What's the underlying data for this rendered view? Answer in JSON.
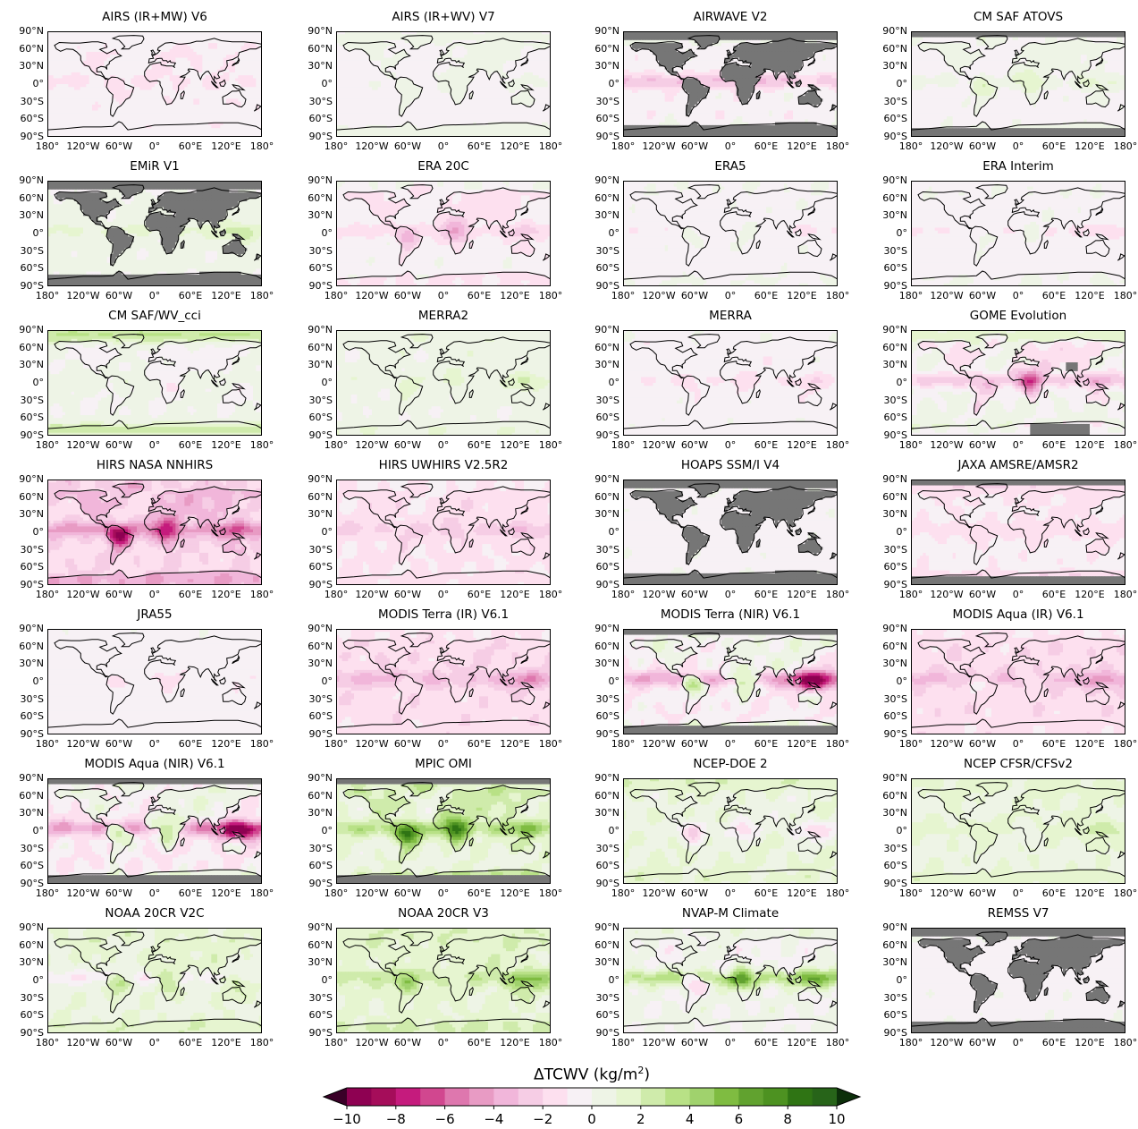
{
  "colors": {
    "land_mask": "#767676",
    "coastline": "#000000",
    "scale": [
      "#8e0152",
      "#a50d5a",
      "#c51b7d",
      "#d1478f",
      "#de77ae",
      "#e89bc4",
      "#f1b6da",
      "#f6cde5",
      "#fde0ef",
      "#f7f1f5",
      "#eef4e6",
      "#e6f5d0",
      "#cfebab",
      "#b8e186",
      "#a0d26d",
      "#7fbc41",
      "#61a22f",
      "#4d9221",
      "#2f7414",
      "#276419"
    ]
  },
  "chart_data": {
    "type": "heatmap",
    "colorbar": {
      "label": "ΔTCWV (kg/m²)",
      "label_prefix": "ΔTCWV (kg/m",
      "label_sup": "2",
      "label_suffix": ")",
      "range": [
        -10,
        10
      ],
      "step": 1,
      "ticks": [
        "−10",
        "−8",
        "−6",
        "−4",
        "−2",
        "0",
        "2",
        "4",
        "6",
        "8",
        "10"
      ],
      "extend": "both"
    },
    "axes": {
      "x_ticks": [
        "180°",
        "120°W",
        "60°W",
        "0°",
        "60°E",
        "120°E",
        "180°"
      ],
      "y_ticks": [
        "90°N",
        "60°N",
        "30°N",
        "0°",
        "30°S",
        "60°S",
        "90°S"
      ],
      "x_range": [
        -180,
        180
      ],
      "y_range": [
        -90,
        90
      ]
    },
    "panels": [
      {
        "title": "AIRS (IR+MW) V6",
        "field": {
          "base": -0.8,
          "itcz": -0.3,
          "land": -0.2,
          "amazon": 0,
          "africa": 0,
          "wp": 0,
          "polar": 0.3,
          "noise": 0.3
        },
        "mask": "none"
      },
      {
        "title": "AIRS (IR+WV) V7",
        "field": {
          "base": -0.3,
          "itcz": 0.2,
          "land": 0.4,
          "amazon": 0.3,
          "africa": 0.3,
          "wp": 0.2,
          "polar": 0.5,
          "noise": 0.3
        },
        "mask": "none"
      },
      {
        "title": "AIRWAVE V2",
        "field": {
          "base": -0.5,
          "itcz": -2.5,
          "land": 0,
          "amazon": 0,
          "africa": 0,
          "wp": 1.0,
          "polar": 1.2,
          "noise": 0.8
        },
        "mask": "land_polar"
      },
      {
        "title": "CM SAF ATOVS",
        "field": {
          "base": -0.4,
          "itcz": 0.6,
          "land": 0.8,
          "amazon": 1.2,
          "africa": 1.5,
          "wp": 1.2,
          "polar": 0.2,
          "noise": 0.6
        },
        "mask": "polar"
      },
      {
        "title": "EMiR V1",
        "field": {
          "base": 0.3,
          "itcz": 0.8,
          "land": 0,
          "amazon": 0,
          "africa": 0,
          "wp": 1.8,
          "polar": -0.6,
          "noise": 0.6
        },
        "mask": "land_polar"
      },
      {
        "title": "ERA 20C",
        "field": {
          "base": -0.4,
          "itcz": -1.0,
          "land": -1.0,
          "amazon": -2.0,
          "africa": -2.5,
          "wp": -1.0,
          "polar": 0.3,
          "noise": 0.6
        },
        "mask": "none"
      },
      {
        "title": "ERA5",
        "field": {
          "base": -0.3,
          "itcz": -0.5,
          "land": 0.1,
          "amazon": 0.5,
          "africa": 0.4,
          "wp": -0.5,
          "polar": 0.2,
          "noise": 0.4
        },
        "mask": "none"
      },
      {
        "title": "ERA Interim",
        "field": {
          "base": -0.4,
          "itcz": -0.6,
          "land": 0.2,
          "amazon": 0.6,
          "africa": 0.4,
          "wp": -0.6,
          "polar": 0.2,
          "noise": 0.4
        },
        "mask": "none"
      },
      {
        "title": "CM SAF/WV_cci",
        "field": {
          "base": 0.1,
          "itcz": 0.6,
          "land": -0.5,
          "amazon": 0.8,
          "africa": -0.8,
          "wp": -0.6,
          "polar": 3.0,
          "noise": 0.5
        },
        "mask": "none"
      },
      {
        "title": "MERRA2",
        "field": {
          "base": 0.2,
          "itcz": 0.5,
          "land": 0.4,
          "amazon": 0.8,
          "africa": 0.6,
          "wp": 1.5,
          "polar": 0.3,
          "noise": 0.5
        },
        "mask": "none"
      },
      {
        "title": "MERRA",
        "field": {
          "base": -0.4,
          "itcz": -0.6,
          "land": -0.3,
          "amazon": -0.6,
          "africa": -0.6,
          "wp": -0.8,
          "polar": 0.2,
          "noise": 0.5
        },
        "mask": "none"
      },
      {
        "title": "GOME Evolution",
        "field": {
          "base": 0.1,
          "itcz": -2.5,
          "land": -1.5,
          "amazon": -1.5,
          "africa": -4.5,
          "wp": -1.2,
          "polar": 1.5,
          "noise": 0.9
        },
        "mask": "patches"
      },
      {
        "title": "HIRS NASA NNHIRS",
        "field": {
          "base": -1.8,
          "itcz": -2.5,
          "land": -1.5,
          "amazon": -6.0,
          "africa": -4.0,
          "wp": -2.0,
          "polar": -0.5,
          "noise": 1.0
        },
        "mask": "none"
      },
      {
        "title": "HIRS UWHIRS V2.5R2",
        "field": {
          "base": -1.2,
          "itcz": -1.0,
          "land": -0.4,
          "amazon": -0.3,
          "africa": -0.8,
          "wp": -1.0,
          "polar": 0.3,
          "noise": 0.8
        },
        "mask": "none"
      },
      {
        "title": "HOAPS SSM/I V4",
        "field": {
          "base": -0.2,
          "itcz": -0.4,
          "land": 0,
          "amazon": 0,
          "africa": 0,
          "wp": 0.3,
          "polar": 0.2,
          "noise": 0.3
        },
        "mask": "land_polar"
      },
      {
        "title": "JAXA AMSRE/AMSR2",
        "field": {
          "base": -0.8,
          "itcz": -0.6,
          "land": -0.3,
          "amazon": -0.4,
          "africa": -0.4,
          "wp": -0.4,
          "polar": -1.2,
          "noise": 0.4
        },
        "mask": "polar"
      },
      {
        "title": "JRA55",
        "field": {
          "base": -0.3,
          "itcz": -0.4,
          "land": -0.4,
          "amazon": -0.5,
          "africa": -0.4,
          "wp": -0.2,
          "polar": 0.1,
          "noise": 0.3
        },
        "mask": "none"
      },
      {
        "title": "MODIS Terra (IR) V6.1",
        "field": {
          "base": -1.6,
          "itcz": -1.8,
          "land": -0.3,
          "amazon": 0.8,
          "africa": 0.2,
          "wp": -1.5,
          "polar": 0.5,
          "noise": 0.8
        },
        "mask": "none"
      },
      {
        "title": "MODIS Terra (NIR) V6.1",
        "field": {
          "base": -0.8,
          "itcz": -3.0,
          "land": 1.2,
          "amazon": 2.5,
          "africa": 3.0,
          "wp": -7.0,
          "polar": 0.6,
          "noise": 1.2
        },
        "mask": "polar"
      },
      {
        "title": "MODIS Aqua (IR) V6.1",
        "field": {
          "base": -1.6,
          "itcz": -1.5,
          "land": -0.2,
          "amazon": 1.5,
          "africa": 0.4,
          "wp": -1.6,
          "polar": 0.5,
          "noise": 0.8
        },
        "mask": "none"
      },
      {
        "title": "MODIS Aqua (NIR) V6.1",
        "field": {
          "base": -0.9,
          "itcz": -3.2,
          "land": 1.4,
          "amazon": 2.5,
          "africa": 3.2,
          "wp": -7.5,
          "polar": 0.6,
          "noise": 1.2
        },
        "mask": "polar"
      },
      {
        "title": "MPIC OMI",
        "field": {
          "base": 0.8,
          "itcz": 2.5,
          "land": 1.5,
          "amazon": 6.5,
          "africa": 5.5,
          "wp": 2.0,
          "polar": 1.0,
          "noise": 1.0
        },
        "mask": "polar"
      },
      {
        "title": "NCEP-DOE 2",
        "field": {
          "base": 1.0,
          "itcz": -0.6,
          "land": -0.4,
          "amazon": -3.0,
          "africa": -1.8,
          "wp": -2.0,
          "polar": 0.8,
          "noise": 0.9
        },
        "mask": "none"
      },
      {
        "title": "NCEP CFSR/CFSv2",
        "field": {
          "base": 0.8,
          "itcz": 0.6,
          "land": 0.3,
          "amazon": 0.2,
          "africa": -0.6,
          "wp": 1.5,
          "polar": 0.5,
          "noise": 0.6
        },
        "mask": "none"
      },
      {
        "title": "NOAA 20CR V2C",
        "field": {
          "base": 0.8,
          "itcz": -1.5,
          "land": 0.6,
          "amazon": 2.0,
          "africa": 1.6,
          "wp": 2.0,
          "polar": 0.4,
          "noise": 0.8
        },
        "mask": "none"
      },
      {
        "title": "NOAA 20CR V3",
        "field": {
          "base": 1.2,
          "itcz": 1.5,
          "land": 0.4,
          "amazon": 2.8,
          "africa": -0.4,
          "wp": 3.0,
          "polar": 0.6,
          "noise": 0.9
        },
        "mask": "none"
      },
      {
        "title": "NVAP-M Climate",
        "field": {
          "base": 0.2,
          "itcz": 3.0,
          "land": -0.5,
          "amazon": -1.5,
          "africa": 6.0,
          "wp": 3.0,
          "polar": 0.4,
          "noise": 1.0
        },
        "mask": "none"
      },
      {
        "title": "REMSS V7",
        "field": {
          "base": -0.2,
          "itcz": -0.3,
          "land": 0,
          "amazon": 0,
          "africa": 0,
          "wp": 0.3,
          "polar": 0.2,
          "noise": 0.3
        },
        "mask": "land_polar"
      }
    ]
  }
}
